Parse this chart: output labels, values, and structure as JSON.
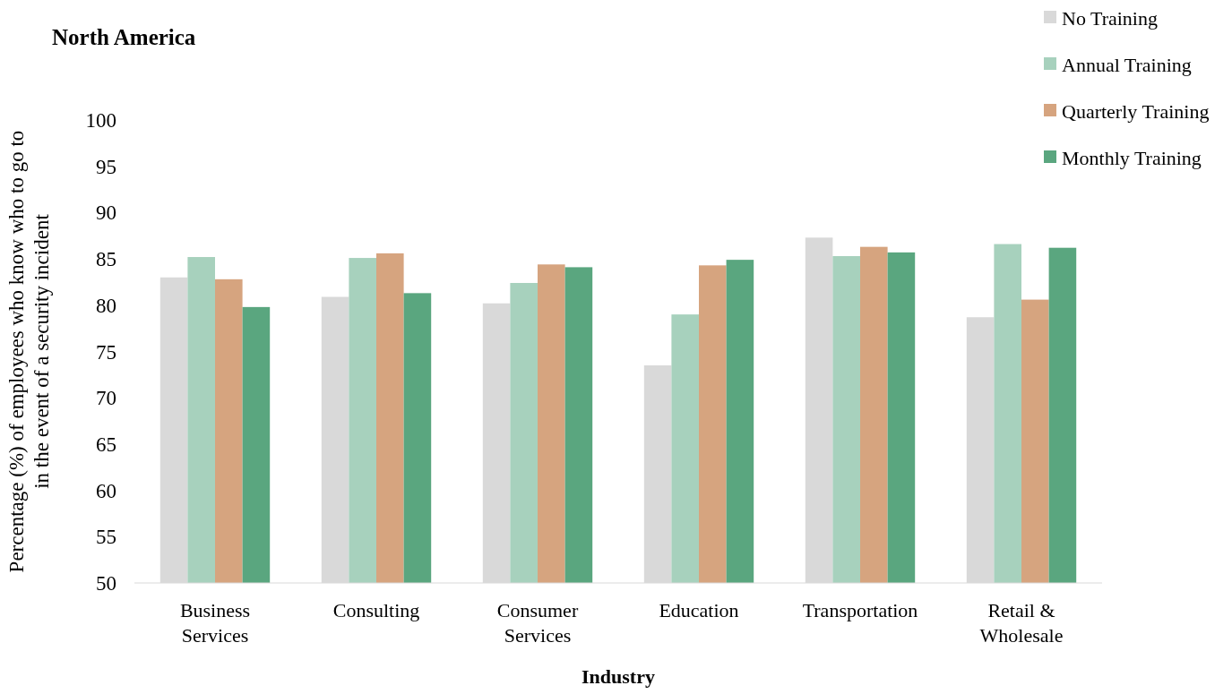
{
  "chart_data": {
    "type": "bar",
    "title": "North America",
    "xlabel": "Industry",
    "ylabel": "Percentage (%) of employees who know who to go to in the event of a security incident",
    "categories": [
      "Business Services",
      "Consulting",
      "Consumer Services",
      "Education",
      "Transportation",
      "Retail & Wholesale"
    ],
    "series": [
      {
        "name": "No Training",
        "color": "#d9d9d9",
        "values": [
          83.0,
          80.9,
          80.2,
          73.5,
          87.3,
          78.7
        ]
      },
      {
        "name": "Annual Training",
        "color": "#a7d1bd",
        "values": [
          85.2,
          85.1,
          82.4,
          79.0,
          85.3,
          86.6
        ]
      },
      {
        "name": "Quarterly Training",
        "color": "#d6a47f",
        "values": [
          82.8,
          85.6,
          84.4,
          84.3,
          86.3,
          80.6
        ]
      },
      {
        "name": "Monthly Training",
        "color": "#5aa67f",
        "values": [
          79.8,
          81.3,
          84.1,
          84.9,
          85.7,
          86.2
        ]
      }
    ],
    "ylim": [
      50,
      100
    ],
    "yticks": [
      50,
      55,
      60,
      65,
      70,
      75,
      80,
      85,
      90,
      95,
      100
    ],
    "grid": false,
    "legend": "top right"
  }
}
